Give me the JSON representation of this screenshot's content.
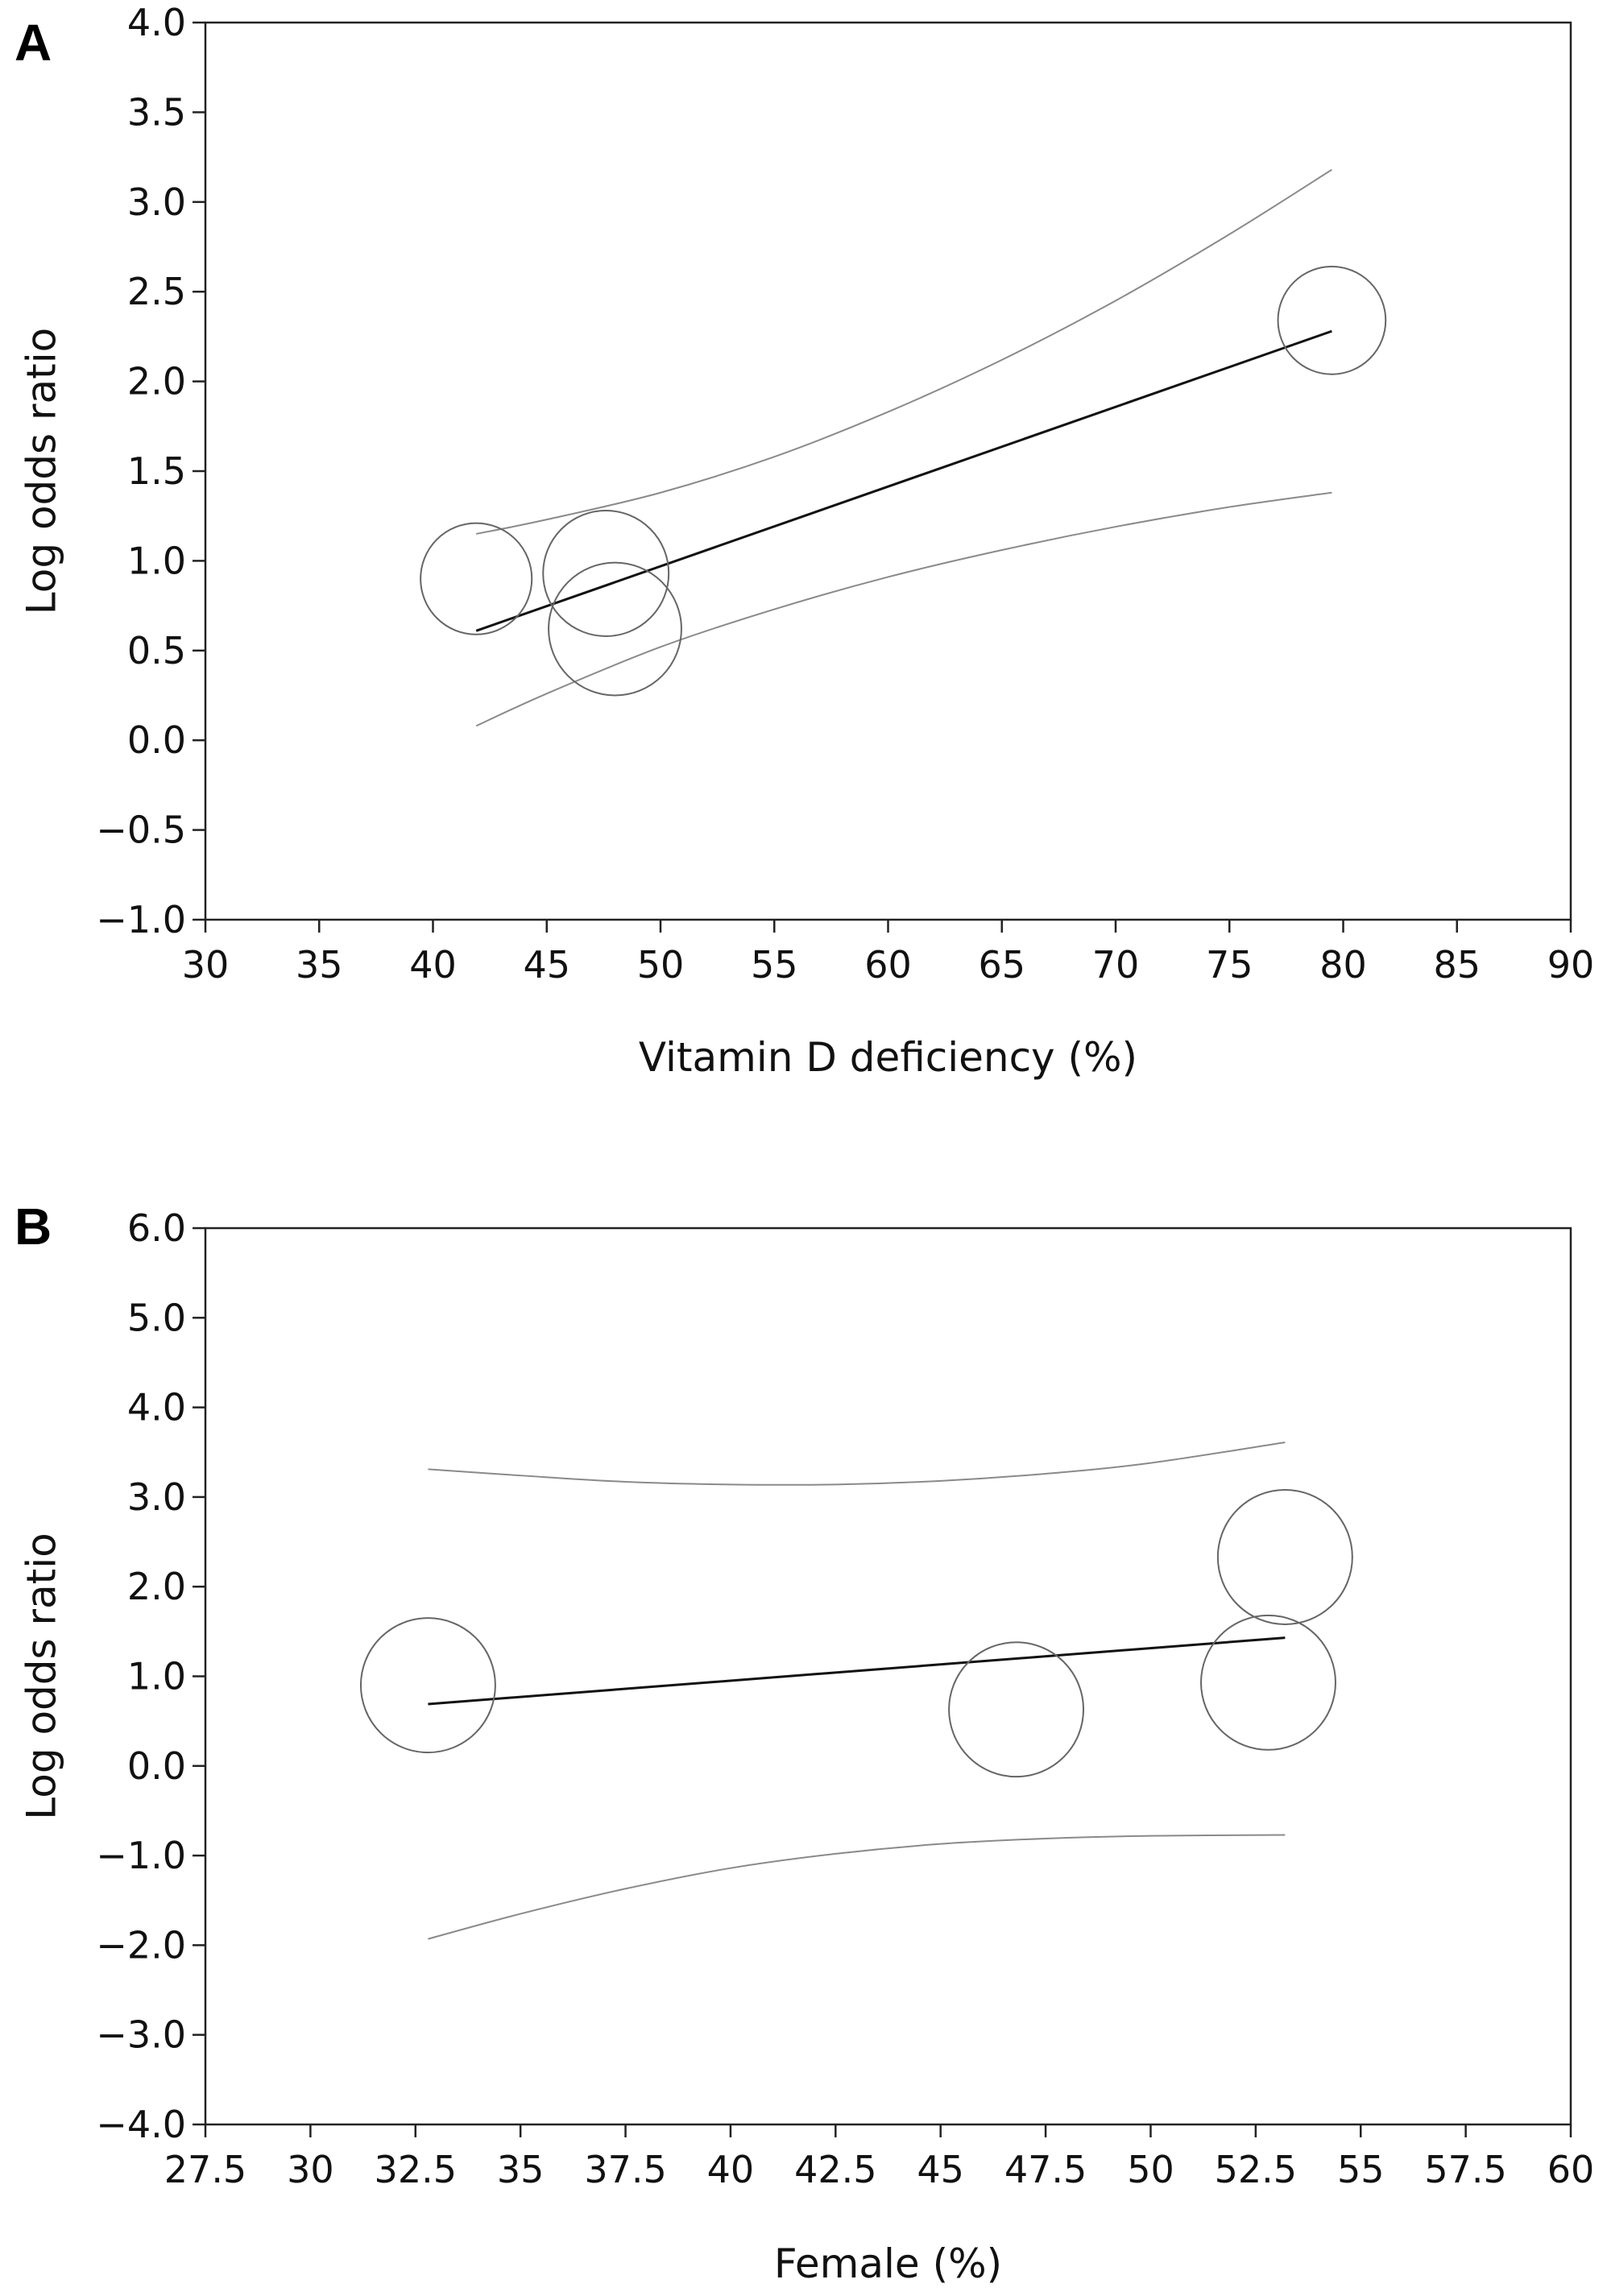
{
  "chart_data": [
    {
      "panel": "A",
      "type": "scatter",
      "xlabel": "Vitamin D deficiency (%)",
      "ylabel": "Log odds ratio",
      "xlim": [
        30,
        90
      ],
      "ylim": [
        -1.0,
        4.0
      ],
      "xticks": [
        30,
        35,
        40,
        45,
        50,
        55,
        60,
        65,
        70,
        75,
        80,
        85,
        90
      ],
      "xtick_labels": [
        "30",
        "35",
        "40",
        "45",
        "50",
        "55",
        "60",
        "65",
        "70",
        "75",
        "80",
        "85",
        "90"
      ],
      "yticks": [
        -1.0,
        -0.5,
        0.0,
        0.5,
        1.0,
        1.5,
        2.0,
        2.5,
        3.0,
        3.5,
        4.0
      ],
      "ytick_labels": [
        "−1.0",
        "−0.5",
        "0.0",
        "0.5",
        "1.0",
        "1.5",
        "2.0",
        "2.5",
        "3.0",
        "3.5",
        "4.0"
      ],
      "points": [
        {
          "x": 41.9,
          "y": 0.9,
          "r_y": 0.31
        },
        {
          "x": 47.6,
          "y": 0.93,
          "r_y": 0.35
        },
        {
          "x": 48.0,
          "y": 0.62,
          "r_y": 0.37
        },
        {
          "x": 79.5,
          "y": 2.34,
          "r_y": 0.3
        }
      ],
      "regression": {
        "x": [
          41.9,
          79.5
        ],
        "y": [
          0.61,
          2.28
        ]
      },
      "ci_upper": {
        "x": [
          41.9,
          45,
          50,
          55,
          60,
          65,
          70,
          75,
          79.5
        ],
        "y": [
          1.15,
          1.23,
          1.38,
          1.58,
          1.83,
          2.12,
          2.45,
          2.82,
          3.18
        ]
      },
      "ci_lower": {
        "x": [
          41.9,
          45,
          50,
          55,
          60,
          65,
          70,
          75,
          79.5
        ],
        "y": [
          0.08,
          0.26,
          0.52,
          0.73,
          0.91,
          1.06,
          1.19,
          1.3,
          1.38
        ]
      }
    },
    {
      "panel": "B",
      "type": "scatter",
      "xlabel": "Female (%)",
      "ylabel": "Log odds ratio",
      "xlim": [
        27.5,
        60
      ],
      "ylim": [
        -4.0,
        6.0
      ],
      "xticks": [
        27.5,
        30,
        32.5,
        35,
        37.5,
        40,
        42.5,
        45,
        47.5,
        50,
        52.5,
        55,
        57.5,
        60
      ],
      "xtick_labels": [
        "27.5",
        "30",
        "32.5",
        "35",
        "37.5",
        "40",
        "42.5",
        "45",
        "47.5",
        "50",
        "52.5",
        "55",
        "57.5",
        "60"
      ],
      "yticks": [
        -4.0,
        -3.0,
        -2.0,
        -1.0,
        0.0,
        1.0,
        2.0,
        3.0,
        4.0,
        5.0,
        6.0
      ],
      "ytick_labels": [
        "−4.0",
        "−3.0",
        "−2.0",
        "−1.0",
        "0.0",
        "1.0",
        "2.0",
        "3.0",
        "4.0",
        "5.0",
        "6.0"
      ],
      "points": [
        {
          "x": 32.8,
          "y": 0.9,
          "r_y": 0.75
        },
        {
          "x": 46.8,
          "y": 0.63,
          "r_y": 0.75
        },
        {
          "x": 52.8,
          "y": 0.93,
          "r_y": 0.75
        },
        {
          "x": 53.2,
          "y": 2.33,
          "r_y": 0.75
        }
      ],
      "regression": {
        "x": [
          32.8,
          53.2
        ],
        "y": [
          0.69,
          1.43
        ]
      },
      "ci_upper": {
        "x": [
          32.8,
          35,
          37.5,
          40,
          42.5,
          45,
          47.5,
          50,
          53.2
        ],
        "y": [
          3.31,
          3.24,
          3.17,
          3.14,
          3.14,
          3.18,
          3.26,
          3.38,
          3.61
        ]
      },
      "ci_lower": {
        "x": [
          32.8,
          35,
          37.5,
          40,
          42.5,
          45,
          47.5,
          50,
          53.2
        ],
        "y": [
          -1.93,
          -1.65,
          -1.37,
          -1.14,
          -0.98,
          -0.87,
          -0.81,
          -0.78,
          -0.77
        ]
      }
    }
  ]
}
